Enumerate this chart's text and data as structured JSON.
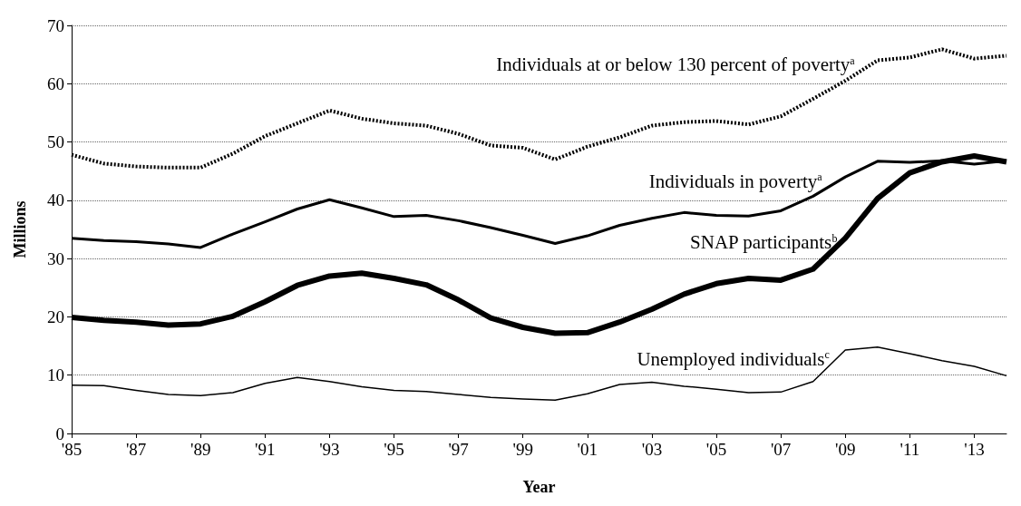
{
  "chart_data": {
    "type": "line",
    "xlabel": "Year",
    "ylabel": "Millions",
    "categories": [
      "'85",
      null,
      "'87",
      null,
      "'89",
      null,
      "'91",
      null,
      "'93",
      null,
      "'95",
      null,
      "'97",
      null,
      "'99",
      null,
      "'01",
      null,
      "'03",
      null,
      "'05",
      null,
      "'07",
      null,
      "'09",
      null,
      "'11",
      null,
      "'13",
      null
    ],
    "series": [
      {
        "name": "Individuals at or below 130 percent of poverty$^{a}$",
        "color": "#000000",
        "line_style": "dotted",
        "values": [
          47.8,
          46.3,
          45.8,
          45.6,
          45.6,
          48,
          51,
          53.2,
          55.4,
          54,
          53.2,
          52.8,
          51.4,
          49.4,
          49,
          47,
          49.2,
          50.8,
          52.8,
          53.4,
          53.6,
          53,
          54.4,
          57.4,
          60.5,
          64,
          64.5,
          65.9,
          64.3,
          64.8
        ]
      },
      {
        "name": "Individuals in poverty$^{a}$",
        "color": "#000000",
        "values": [
          33.5,
          33.1,
          32.9,
          32.5,
          31.9,
          34.2,
          36.3,
          38.5,
          40.1,
          38.7,
          37.2,
          37.4,
          36.5,
          35.3,
          34,
          32.6,
          33.9,
          35.7,
          36.9,
          37.9,
          37.4,
          37.3,
          38.2,
          40.7,
          44,
          46.7,
          46.5,
          46.8,
          46.2,
          46.8
        ]
      },
      {
        "name": "SNAP participants$^{b}$",
        "color": "#000000",
        "values": [
          19.9,
          19.4,
          19.1,
          18.6,
          18.8,
          20.1,
          22.6,
          25.4,
          27,
          27.5,
          26.6,
          25.5,
          22.9,
          19.8,
          18.2,
          17.2,
          17.3,
          19.1,
          21.3,
          23.9,
          25.7,
          26.6,
          26.3,
          28.2,
          33.5,
          40.3,
          44.7,
          46.6,
          47.6,
          46.6
        ]
      },
      {
        "name": "Unemployed individuals$^{c}$",
        "color": "#000000",
        "values": [
          8.3,
          8.2,
          7.4,
          6.7,
          6.5,
          7,
          8.6,
          9.6,
          8.9,
          8,
          7.4,
          7.2,
          6.7,
          6.2,
          5.9,
          5.7,
          6.8,
          8.4,
          8.8,
          8.1,
          7.6,
          7,
          7.1,
          8.9,
          14.3,
          14.8,
          13.7,
          12.5,
          11.5,
          9.9
        ]
      }
    ],
    "ylim": [
      0,
      70
    ],
    "yticks": [
      0,
      10,
      20,
      30,
      40,
      50,
      60,
      70
    ],
    "grid": "y",
    "legend": false,
    "marker": "none"
  }
}
